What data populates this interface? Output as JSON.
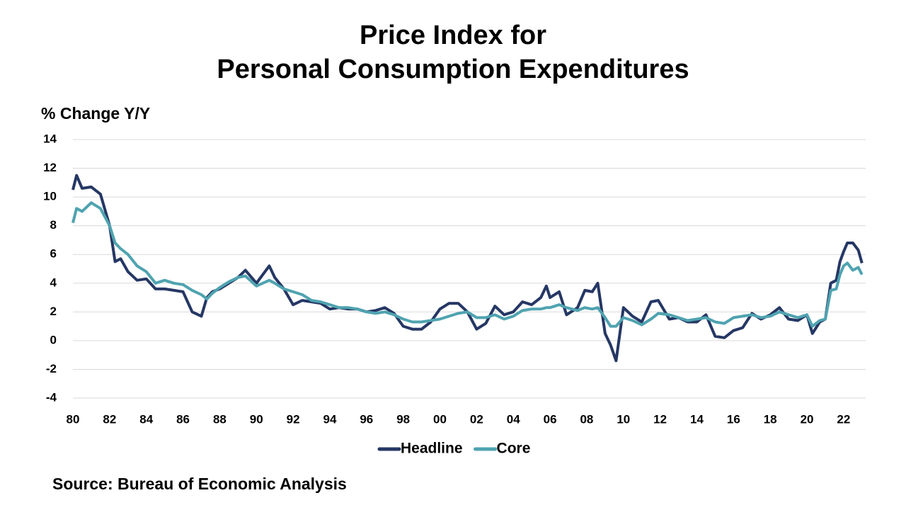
{
  "chart_data": {
    "type": "line",
    "title": [
      "Price Index for",
      "Personal Consumption Expenditures"
    ],
    "y_axis_label": "% Change Y/Y",
    "source": "Source: Bureau of Economic Analysis",
    "x": [
      1980.0,
      1980.2,
      1980.5,
      1981.0,
      1981.5,
      1982.0,
      1982.3,
      1982.6,
      1983.0,
      1983.5,
      1984.0,
      1984.5,
      1985.0,
      1985.5,
      1986.0,
      1986.5,
      1987.0,
      1987.3,
      1987.6,
      1988.0,
      1988.5,
      1989.0,
      1989.4,
      1990.0,
      1990.7,
      1991.0,
      1991.5,
      1992.0,
      1992.5,
      1993.0,
      1993.5,
      1994.0,
      1994.5,
      1995.0,
      1995.5,
      1996.0,
      1996.5,
      1997.0,
      1997.5,
      1998.0,
      1998.5,
      1999.0,
      1999.5,
      2000.0,
      2000.5,
      2001.0,
      2001.5,
      2002.0,
      2002.5,
      2003.0,
      2003.5,
      2004.0,
      2004.5,
      2005.0,
      2005.5,
      2005.8,
      2006.0,
      2006.5,
      2006.9,
      2007.5,
      2007.9,
      2008.3,
      2008.6,
      2009.0,
      2009.3,
      2009.6,
      2010.0,
      2010.5,
      2011.0,
      2011.5,
      2011.9,
      2012.5,
      2013.0,
      2013.5,
      2014.0,
      2014.5,
      2015.0,
      2015.5,
      2016.0,
      2016.5,
      2017.0,
      2017.5,
      2018.0,
      2018.5,
      2019.0,
      2019.5,
      2020.0,
      2020.3,
      2020.7,
      2021.0,
      2021.3,
      2021.6,
      2021.8,
      2022.0,
      2022.2,
      2022.5,
      2022.8,
      2023.0
    ],
    "series": [
      {
        "name": "Headline",
        "color": "#253764",
        "values": [
          10.5,
          11.5,
          10.6,
          10.7,
          10.2,
          8.0,
          5.5,
          5.7,
          4.8,
          4.2,
          4.3,
          3.6,
          3.6,
          3.5,
          3.4,
          2.0,
          1.7,
          3.0,
          3.4,
          3.6,
          4.0,
          4.4,
          4.9,
          4.0,
          5.2,
          4.4,
          3.6,
          2.5,
          2.8,
          2.7,
          2.6,
          2.2,
          2.3,
          2.2,
          2.2,
          2.0,
          2.1,
          2.3,
          1.9,
          1.0,
          0.8,
          0.8,
          1.3,
          2.2,
          2.6,
          2.6,
          2.0,
          0.8,
          1.2,
          2.4,
          1.8,
          2.0,
          2.7,
          2.5,
          3.0,
          3.8,
          3.0,
          3.4,
          1.8,
          2.3,
          3.5,
          3.4,
          4.0,
          0.5,
          -0.3,
          -1.4,
          2.3,
          1.7,
          1.3,
          2.7,
          2.8,
          1.5,
          1.6,
          1.3,
          1.3,
          1.8,
          0.3,
          0.2,
          0.7,
          0.9,
          1.9,
          1.5,
          1.8,
          2.3,
          1.5,
          1.4,
          1.8,
          0.5,
          1.3,
          1.5,
          4.0,
          4.2,
          5.5,
          6.2,
          6.8,
          6.8,
          6.3,
          5.4
        ]
      },
      {
        "name": "Core",
        "color": "#4fa3b0",
        "values": [
          8.2,
          9.2,
          9.0,
          9.6,
          9.2,
          8.0,
          6.8,
          6.4,
          6.0,
          5.2,
          4.8,
          4.0,
          4.2,
          4.0,
          3.9,
          3.5,
          3.2,
          2.9,
          3.3,
          3.7,
          4.1,
          4.4,
          4.5,
          3.8,
          4.2,
          4.0,
          3.6,
          3.4,
          3.2,
          2.8,
          2.7,
          2.5,
          2.3,
          2.3,
          2.2,
          2.0,
          1.9,
          2.0,
          1.8,
          1.5,
          1.3,
          1.3,
          1.4,
          1.5,
          1.7,
          1.9,
          2.0,
          1.6,
          1.6,
          1.8,
          1.5,
          1.7,
          2.1,
          2.2,
          2.2,
          2.3,
          2.3,
          2.5,
          2.3,
          2.1,
          2.3,
          2.2,
          2.3,
          1.6,
          1.0,
          1.0,
          1.6,
          1.4,
          1.1,
          1.5,
          1.9,
          1.8,
          1.6,
          1.4,
          1.5,
          1.6,
          1.3,
          1.2,
          1.6,
          1.7,
          1.8,
          1.6,
          1.7,
          2.0,
          1.8,
          1.6,
          1.8,
          1.0,
          1.4,
          1.5,
          3.5,
          3.6,
          4.6,
          5.2,
          5.4,
          4.9,
          5.1,
          4.6
        ]
      }
    ],
    "xlim": [
      1980,
      2023.2
    ],
    "xticks": [
      {
        "value": 1980,
        "label": "80"
      },
      {
        "value": 1982,
        "label": "82"
      },
      {
        "value": 1984,
        "label": "84"
      },
      {
        "value": 1986,
        "label": "86"
      },
      {
        "value": 1988,
        "label": "88"
      },
      {
        "value": 1990,
        "label": "90"
      },
      {
        "value": 1992,
        "label": "92"
      },
      {
        "value": 1994,
        "label": "94"
      },
      {
        "value": 1996,
        "label": "96"
      },
      {
        "value": 1998,
        "label": "98"
      },
      {
        "value": 2000,
        "label": "00"
      },
      {
        "value": 2002,
        "label": "02"
      },
      {
        "value": 2004,
        "label": "04"
      },
      {
        "value": 2006,
        "label": "06"
      },
      {
        "value": 2008,
        "label": "08"
      },
      {
        "value": 2010,
        "label": "10"
      },
      {
        "value": 2012,
        "label": "12"
      },
      {
        "value": 2014,
        "label": "14"
      },
      {
        "value": 2016,
        "label": "16"
      },
      {
        "value": 2018,
        "label": "18"
      },
      {
        "value": 2020,
        "label": "20"
      },
      {
        "value": 2022,
        "label": "22"
      }
    ],
    "ylim": [
      -4,
      14
    ],
    "yticks": [
      -4,
      -2,
      0,
      2,
      4,
      6,
      8,
      10,
      12,
      14
    ],
    "grid": true,
    "legend": "bottom"
  }
}
